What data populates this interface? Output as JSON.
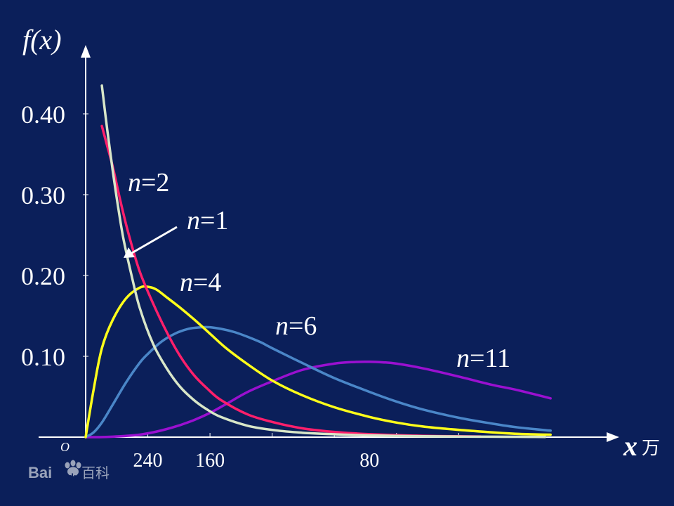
{
  "chart_data": {
    "type": "line",
    "ylabel": "f(x)",
    "xlabel": "x",
    "x_unit": "万",
    "origin_label": "O",
    "yticks": [
      {
        "value": 0.1,
        "label": "0.10"
      },
      {
        "value": 0.2,
        "label": "0.20"
      },
      {
        "value": 0.3,
        "label": "0.30"
      },
      {
        "value": 0.4,
        "label": "0.40"
      }
    ],
    "xtick_labels": [
      {
        "x": 2.3,
        "label": "240"
      },
      {
        "x": 4.6,
        "label": "160"
      },
      {
        "x": 10.5,
        "label": "80"
      }
    ],
    "xticks": [
      2.3,
      4.6,
      6.9,
      9.2,
      11.5,
      13.8
    ],
    "xlim": [
      0,
      17.5
    ],
    "ylim": [
      0,
      0.46
    ],
    "colors": {
      "background": "#0b1f5a",
      "axes": "#ffffff",
      "n1": "#d8e6c8",
      "n2": "#ff1f6b",
      "n4": "#ffff1a",
      "n6": "#4a86c8",
      "n11": "#9a10d0"
    },
    "series": [
      {
        "name": "n=1",
        "key": "n1",
        "x": [
          0.6,
          0.8,
          1.0,
          1.2,
          1.4,
          1.7,
          2.0,
          2.5,
          3.0,
          3.5,
          4.0,
          4.5,
          5.0,
          6.0,
          7.0,
          8.0,
          9.0,
          10.0,
          11.0,
          12.0,
          13.0,
          14.0,
          15.0,
          16.0,
          17.0
        ],
        "y": [
          0.435,
          0.38,
          0.33,
          0.285,
          0.245,
          0.2,
          0.16,
          0.115,
          0.085,
          0.062,
          0.046,
          0.034,
          0.025,
          0.014,
          0.0085,
          0.0055,
          0.0038,
          0.0026,
          0.0018,
          0.0013,
          0.001,
          0.0007,
          0.0005,
          0.0004,
          0.0003
        ]
      },
      {
        "name": "n=2",
        "key": "n2",
        "x": [
          0.6,
          0.8,
          1.0,
          1.3,
          1.6,
          2.0,
          2.5,
          3.0,
          3.5,
          4.0,
          4.5,
          5.0,
          6.0,
          7.0,
          8.0,
          9.0,
          10.0,
          11.0,
          12.0,
          13.0,
          14.6
        ],
        "y": [
          0.385,
          0.36,
          0.335,
          0.29,
          0.25,
          0.205,
          0.165,
          0.13,
          0.1,
          0.077,
          0.06,
          0.046,
          0.028,
          0.018,
          0.011,
          0.007,
          0.0045,
          0.003,
          0.002,
          0.0013,
          0.0008
        ]
      },
      {
        "name": "n=4",
        "key": "n4",
        "x": [
          0.0,
          0.3,
          0.6,
          1.0,
          1.5,
          2.0,
          2.3,
          2.6,
          3.0,
          3.5,
          4.0,
          4.6,
          5.2,
          6.0,
          6.9,
          8.0,
          9.2,
          10.5,
          11.5,
          12.5,
          13.8,
          15.0,
          16.0,
          17.2
        ],
        "y": [
          0.0,
          0.06,
          0.11,
          0.145,
          0.172,
          0.185,
          0.186,
          0.183,
          0.173,
          0.16,
          0.146,
          0.128,
          0.11,
          0.09,
          0.07,
          0.052,
          0.037,
          0.025,
          0.018,
          0.013,
          0.009,
          0.006,
          0.004,
          0.003
        ]
      },
      {
        "name": "n=6",
        "key": "n6",
        "x": [
          0.0,
          0.3,
          0.6,
          1.0,
          1.5,
          2.0,
          2.3,
          2.8,
          3.3,
          3.8,
          4.3,
          4.6,
          5.0,
          5.5,
          6.0,
          6.5,
          6.9,
          8.0,
          9.2,
          10.5,
          11.5,
          12.5,
          13.8,
          15.0,
          16.0,
          17.2
        ],
        "y": [
          0.0,
          0.006,
          0.018,
          0.04,
          0.068,
          0.092,
          0.103,
          0.118,
          0.128,
          0.134,
          0.136,
          0.136,
          0.134,
          0.13,
          0.124,
          0.117,
          0.11,
          0.092,
          0.073,
          0.056,
          0.044,
          0.034,
          0.024,
          0.017,
          0.012,
          0.008
        ]
      },
      {
        "name": "n=11",
        "key": "n11",
        "x": [
          0.0,
          0.5,
          1.0,
          1.5,
          2.0,
          2.5,
          3.0,
          3.5,
          4.0,
          4.6,
          5.2,
          6.0,
          6.9,
          8.0,
          9.2,
          10.0,
          10.5,
          11.0,
          11.5,
          12.5,
          13.8,
          15.0,
          16.0,
          17.2
        ],
        "y": [
          0.0,
          0.0,
          0.0005,
          0.0015,
          0.003,
          0.006,
          0.01,
          0.015,
          0.021,
          0.03,
          0.041,
          0.056,
          0.069,
          0.083,
          0.091,
          0.093,
          0.0932,
          0.0925,
          0.091,
          0.085,
          0.075,
          0.065,
          0.058,
          0.048
        ]
      }
    ],
    "annotations": [
      {
        "key": "n2",
        "var": "n",
        "text": "=2"
      },
      {
        "key": "n1",
        "var": "n",
        "text": "=1"
      },
      {
        "key": "n4",
        "var": "n",
        "text": "=4"
      },
      {
        "key": "n6",
        "var": "n",
        "text": "=6"
      },
      {
        "key": "n11",
        "var": "n",
        "text": "=11"
      }
    ]
  },
  "watermark": {
    "brand": "Bai",
    "paw": "du",
    "suffix": "百科"
  }
}
